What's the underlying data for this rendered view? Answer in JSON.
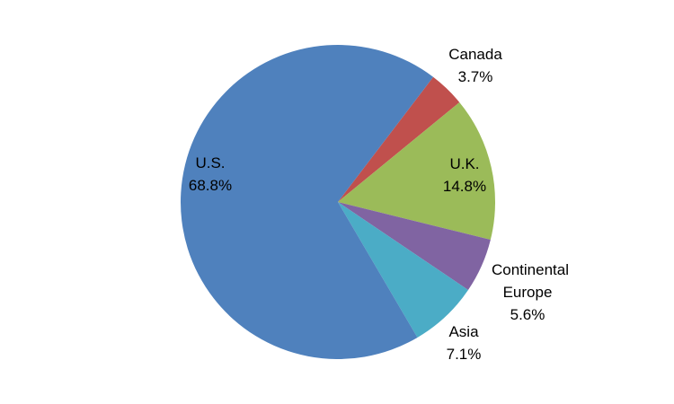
{
  "chart_data": {
    "type": "pie",
    "categories": [
      "Canada",
      "U.K.",
      "Continental Europe",
      "Asia",
      "U.S."
    ],
    "values": [
      3.7,
      14.8,
      5.6,
      7.1,
      68.8
    ],
    "value_labels": [
      "3.7%",
      "14.8%",
      "5.6%",
      "7.1%",
      "68.8%"
    ],
    "colors": [
      "#c0504d",
      "#9bbb59",
      "#8064a2",
      "#4bacc6",
      "#4f81bd"
    ]
  }
}
